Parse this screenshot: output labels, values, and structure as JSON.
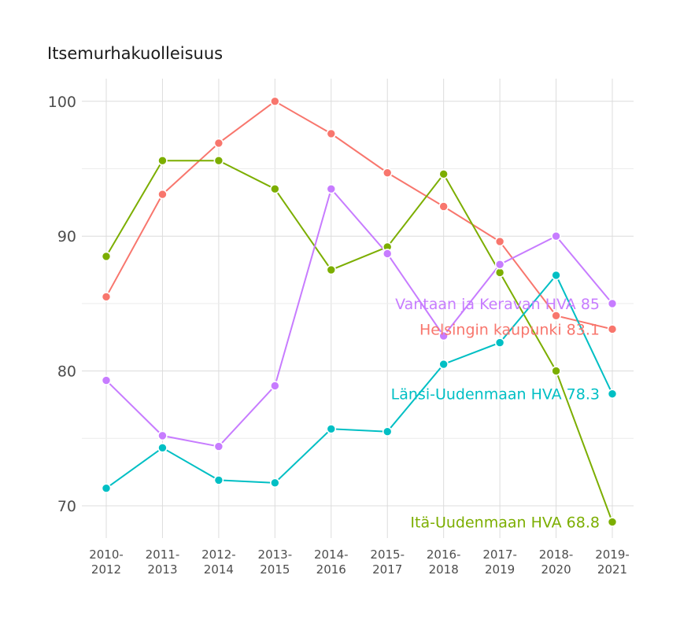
{
  "chart_data": {
    "type": "line",
    "title": "Itsemurhakuolleisuus",
    "xlabel": "",
    "ylabel": "",
    "ylim": [
      68,
      102
    ],
    "yticks": [
      70,
      80,
      90,
      100
    ],
    "categories": [
      "2010-\n2012",
      "2011-\n2013",
      "2012-\n2014",
      "2013-\n2015",
      "2014-\n2016",
      "2015-\n2017",
      "2016-\n2018",
      "2017-\n2019",
      "2018-\n2020",
      "2019-\n2021"
    ],
    "grid": true,
    "legend": "none",
    "series": [
      {
        "name": "Helsingin kaupunki",
        "color": "#F8766D",
        "values": [
          85.5,
          93.1,
          96.9,
          100.0,
          97.6,
          94.7,
          92.2,
          89.6,
          84.1,
          83.1
        ],
        "end_label": "Helsingin kaupunki 83.1"
      },
      {
        "name": "Itä-Uudenmaan HVA",
        "color": "#7CAE00",
        "values": [
          88.5,
          95.6,
          95.6,
          93.5,
          87.5,
          89.2,
          94.6,
          87.3,
          80.0,
          68.8
        ],
        "end_label": "Itä-Uudenmaan HVA 68.8"
      },
      {
        "name": "Länsi-Uudenmaan HVA",
        "color": "#00BFC4",
        "values": [
          71.3,
          74.3,
          71.9,
          71.7,
          75.7,
          75.5,
          80.5,
          82.1,
          87.1,
          78.3
        ],
        "end_label": "Länsi-Uudenmaan HVA 78.3"
      },
      {
        "name": "Vantaan ja Keravan HVA",
        "color": "#C77CFF",
        "values": [
          79.3,
          75.2,
          74.4,
          78.9,
          93.5,
          88.7,
          82.6,
          87.9,
          90.0,
          85.0
        ],
        "end_label": "Vantaan ja Keravan HVA 85"
      }
    ]
  }
}
